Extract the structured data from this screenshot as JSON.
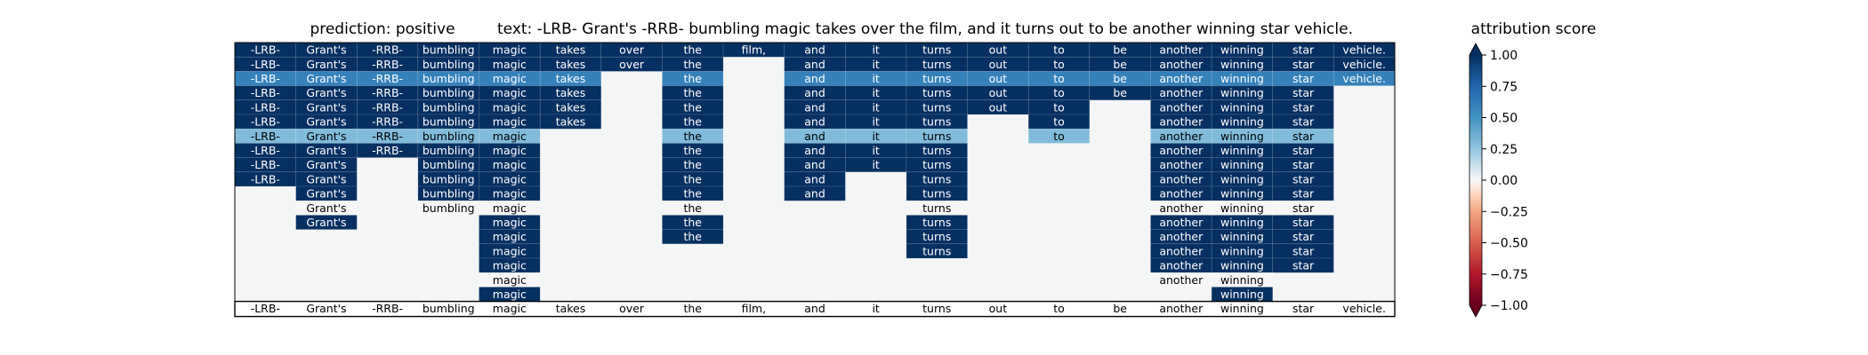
{
  "chart_data": {
    "type": "heatmap",
    "title_prefix": "prediction:  positive",
    "title_text": "text:  -LRB- Grant's -RRB- bumbling magic takes over the film, and it turns out to be another winning star vehicle.",
    "bottom_tokens": [
      "-LRB-",
      "Grant's",
      "-RRB-",
      "bumbling",
      "magic",
      "takes",
      "over",
      "the",
      "film,",
      "and",
      "it",
      "turns",
      "out",
      "to",
      "be",
      "another",
      "winning",
      "star",
      "vehicle."
    ],
    "rows": [
      [
        1,
        1,
        1,
        1,
        1,
        1,
        1,
        1,
        1,
        1,
        1,
        1,
        1,
        1,
        1,
        1,
        1,
        1,
        1
      ],
      [
        1,
        1,
        1,
        1,
        1,
        1,
        1,
        1,
        null,
        1,
        1,
        1,
        1,
        1,
        1,
        1,
        1,
        1,
        1
      ],
      [
        0.6,
        0.6,
        0.6,
        0.6,
        0.6,
        0.6,
        null,
        0.6,
        null,
        0.6,
        0.6,
        0.6,
        0.6,
        0.6,
        0.6,
        0.6,
        0.6,
        0.6,
        0.6
      ],
      [
        1,
        1,
        1,
        1,
        1,
        1,
        null,
        1,
        null,
        1,
        1,
        1,
        1,
        1,
        1,
        1,
        1,
        1,
        null
      ],
      [
        1,
        1,
        1,
        1,
        1,
        1,
        null,
        1,
        null,
        1,
        1,
        1,
        1,
        1,
        null,
        1,
        1,
        1,
        null
      ],
      [
        1,
        1,
        1,
        1,
        1,
        1,
        null,
        1,
        null,
        1,
        1,
        1,
        null,
        1,
        null,
        1,
        1,
        1,
        null
      ],
      [
        0.3,
        0.3,
        0.3,
        0.3,
        0.3,
        null,
        null,
        0.3,
        null,
        0.3,
        0.3,
        0.3,
        null,
        0.3,
        null,
        0.3,
        0.3,
        0.3,
        null
      ],
      [
        1,
        1,
        1,
        1,
        1,
        null,
        null,
        1,
        null,
        1,
        1,
        1,
        null,
        null,
        null,
        1,
        1,
        1,
        null
      ],
      [
        1,
        1,
        null,
        1,
        1,
        null,
        null,
        1,
        null,
        1,
        1,
        1,
        null,
        null,
        null,
        1,
        1,
        1,
        null
      ],
      [
        1,
        1,
        null,
        1,
        1,
        null,
        null,
        1,
        null,
        1,
        null,
        1,
        null,
        null,
        null,
        1,
        1,
        1,
        null
      ],
      [
        null,
        1,
        null,
        1,
        1,
        null,
        null,
        1,
        null,
        1,
        null,
        1,
        null,
        null,
        null,
        1,
        1,
        1,
        null
      ],
      [
        null,
        0,
        null,
        0,
        0,
        null,
        null,
        0,
        null,
        null,
        null,
        0,
        null,
        null,
        null,
        0,
        0,
        0,
        null
      ],
      [
        null,
        1,
        null,
        null,
        1,
        null,
        null,
        1,
        null,
        null,
        null,
        1,
        null,
        null,
        null,
        1,
        1,
        1,
        null
      ],
      [
        null,
        null,
        null,
        null,
        1,
        null,
        null,
        1,
        null,
        null,
        null,
        1,
        null,
        null,
        null,
        1,
        1,
        1,
        null
      ],
      [
        null,
        null,
        null,
        null,
        1,
        null,
        null,
        null,
        null,
        null,
        null,
        1,
        null,
        null,
        null,
        1,
        1,
        1,
        null
      ],
      [
        null,
        null,
        null,
        null,
        1,
        null,
        null,
        null,
        null,
        null,
        null,
        null,
        null,
        null,
        null,
        1,
        1,
        1,
        null
      ],
      [
        null,
        null,
        null,
        null,
        0,
        null,
        null,
        null,
        null,
        null,
        null,
        null,
        null,
        null,
        null,
        0,
        0,
        null,
        null
      ],
      [
        null,
        null,
        null,
        null,
        1,
        null,
        null,
        null,
        null,
        null,
        null,
        null,
        null,
        null,
        null,
        null,
        1,
        null,
        null
      ]
    ],
    "colorbar": {
      "label": "attribution score",
      "range": [
        -1,
        1
      ],
      "ticks": [
        -1,
        -0.75,
        -0.5,
        -0.25,
        0,
        0.25,
        0.5,
        0.75,
        1
      ],
      "tick_labels": [
        "−1.00",
        "−0.75",
        "−0.50",
        "−0.25",
        "0.00",
        "0.25",
        "0.50",
        "0.75",
        "1.00"
      ],
      "colormap": "RdBu"
    },
    "background_color": "#f4f6f6",
    "border_color": "#000000"
  }
}
